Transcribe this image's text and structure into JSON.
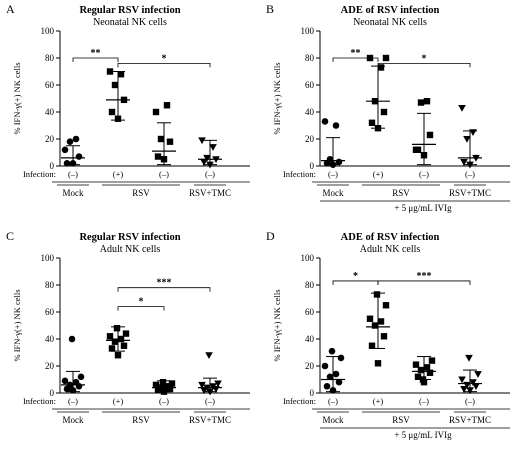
{
  "chart_data": [
    {
      "type": "scatter",
      "panel": "A",
      "title": "Regular RSV infection",
      "subtitle": "Neonatal NK cells",
      "ylabel": "% IFN-γ(+) NK cells",
      "ylim": [
        0,
        100
      ],
      "yticks": [
        "0",
        "20",
        "40",
        "60",
        "80",
        "100"
      ],
      "infection_label": "Infection:",
      "infection_states": [
        "(–)",
        "(+)",
        "(–)",
        "(–)"
      ],
      "groups": [
        "Mock",
        "RSV",
        "RSV+TMC"
      ],
      "group_spans": [
        [
          0,
          0
        ],
        [
          1,
          2
        ],
        [
          3,
          3
        ]
      ],
      "footer": "",
      "series": [
        {
          "marker": "circle",
          "values": [
            2,
            2,
            7,
            18,
            20,
            12
          ],
          "mean": 6,
          "sd_low": 1,
          "sd_high": 15
        },
        {
          "marker": "square",
          "values": [
            35,
            40,
            49,
            60,
            68,
            70
          ],
          "mean": 49,
          "sd_low": 34,
          "sd_high": 70
        },
        {
          "marker": "square",
          "values": [
            5,
            7,
            18,
            20,
            45,
            40
          ],
          "mean": 11,
          "sd_low": 1,
          "sd_high": 32
        },
        {
          "marker": "triangle-down",
          "values": [
            1,
            3,
            5,
            6,
            14,
            19
          ],
          "mean": 5,
          "sd_low": 1,
          "sd_high": 19
        }
      ],
      "comparisons": [
        {
          "from": 0,
          "to": 1,
          "label": "**",
          "y": 80
        },
        {
          "from": 1,
          "to": 3,
          "label": "*",
          "y": 76
        }
      ]
    },
    {
      "type": "scatter",
      "panel": "B",
      "title": "ADE of RSV infection",
      "subtitle": "Neonatal NK cells",
      "ylabel": "% IFN-γ(+) NK cells",
      "ylim": [
        0,
        100
      ],
      "yticks": [
        "0",
        "20",
        "40",
        "60",
        "80",
        "100"
      ],
      "infection_label": "Infection:",
      "infection_states": [
        "(–)",
        "(+)",
        "(–)",
        "(–)"
      ],
      "groups": [
        "Mock",
        "RSV",
        "RSV+TMC"
      ],
      "group_spans": [
        [
          0,
          0
        ],
        [
          1,
          2
        ],
        [
          3,
          3
        ]
      ],
      "footer": "+ 5 μg/mL IVIg",
      "series": [
        {
          "marker": "circle",
          "values": [
            1,
            2,
            3,
            5,
            30,
            33
          ],
          "mean": 4,
          "sd_low": 1,
          "sd_high": 21
        },
        {
          "marker": "square",
          "values": [
            28,
            32,
            40,
            48,
            73,
            80,
            80
          ],
          "mean": 48,
          "sd_low": 28,
          "sd_high": 74
        },
        {
          "marker": "square",
          "values": [
            8,
            12,
            23,
            47,
            48,
            12
          ],
          "mean": 16,
          "sd_low": 1,
          "sd_high": 39
        },
        {
          "marker": "triangle-down",
          "values": [
            1,
            3,
            6,
            20,
            25,
            43
          ],
          "mean": 6,
          "sd_low": 1,
          "sd_high": 26
        }
      ],
      "comparisons": [
        {
          "from": 0,
          "to": 1,
          "label": "**",
          "y": 80
        },
        {
          "from": 1,
          "to": 3,
          "label": "*",
          "y": 76
        }
      ]
    },
    {
      "type": "scatter",
      "panel": "C",
      "title": "Regular RSV infection",
      "subtitle": "Adult NK cells",
      "ylabel": "% IFN-γ(+) NK cells",
      "ylim": [
        0,
        100
      ],
      "yticks": [
        "0",
        "20",
        "40",
        "60",
        "80",
        "100"
      ],
      "infection_label": "Infection:",
      "infection_states": [
        "(–)",
        "(+)",
        "(–)",
        "(–)"
      ],
      "groups": [
        "Mock",
        "RSV",
        "RSV+TMC"
      ],
      "group_spans": [
        [
          0,
          0
        ],
        [
          1,
          2
        ],
        [
          3,
          3
        ]
      ],
      "footer": "",
      "series": [
        {
          "marker": "circle",
          "values": [
            2,
            3,
            5,
            6,
            8,
            9,
            12,
            40
          ],
          "mean": 6,
          "sd_low": 1,
          "sd_high": 16
        },
        {
          "marker": "square",
          "values": [
            28,
            33,
            35,
            38,
            40,
            42,
            44,
            48
          ],
          "mean": 39,
          "sd_low": 31,
          "sd_high": 49
        },
        {
          "marker": "square",
          "values": [
            1,
            2,
            3,
            4,
            5,
            6,
            7,
            8
          ],
          "mean": 4,
          "sd_low": 1,
          "sd_high": 9
        },
        {
          "marker": "triangle-down",
          "values": [
            1,
            2,
            3,
            4,
            5,
            6,
            7,
            28
          ],
          "mean": 4,
          "sd_low": 1,
          "sd_high": 11
        }
      ],
      "comparisons": [
        {
          "from": 1,
          "to": 2,
          "label": "*",
          "y": 64
        },
        {
          "from": 1,
          "to": 3,
          "label": "***",
          "y": 78
        }
      ]
    },
    {
      "type": "scatter",
      "panel": "D",
      "title": "ADE of RSV infection",
      "subtitle": "Adult NK cells",
      "ylabel": "% IFN-γ(+) NK cells",
      "ylim": [
        0,
        100
      ],
      "yticks": [
        "0",
        "20",
        "40",
        "60",
        "80",
        "100"
      ],
      "infection_label": "Infection:",
      "infection_states": [
        "(–)",
        "(+)",
        "(–)",
        "(–)"
      ],
      "groups": [
        "Mock",
        "RSV",
        "RSV+TMC"
      ],
      "group_spans": [
        [
          0,
          0
        ],
        [
          1,
          2
        ],
        [
          3,
          3
        ]
      ],
      "footer": "+ 5 μg/mL IVIg",
      "series": [
        {
          "marker": "circle",
          "values": [
            2,
            5,
            8,
            12,
            14,
            20,
            26,
            31
          ],
          "mean": 10,
          "sd_low": 1,
          "sd_high": 27
        },
        {
          "marker": "square",
          "values": [
            22,
            35,
            42,
            50,
            53,
            55,
            65,
            73
          ],
          "mean": 49,
          "sd_low": 33,
          "sd_high": 74
        },
        {
          "marker": "square",
          "values": [
            8,
            12,
            15,
            17,
            19,
            21,
            24,
            10
          ],
          "mean": 16,
          "sd_low": 10,
          "sd_high": 27
        },
        {
          "marker": "triangle-down",
          "values": [
            2,
            3,
            5,
            6,
            8,
            10,
            14,
            26
          ],
          "mean": 7,
          "sd_low": 1,
          "sd_high": 17
        }
      ],
      "comparisons": [
        {
          "from": 0,
          "to": 1,
          "label": "*",
          "y": 83
        },
        {
          "from": 1,
          "to": 3,
          "label": "***",
          "y": 83
        }
      ]
    }
  ]
}
